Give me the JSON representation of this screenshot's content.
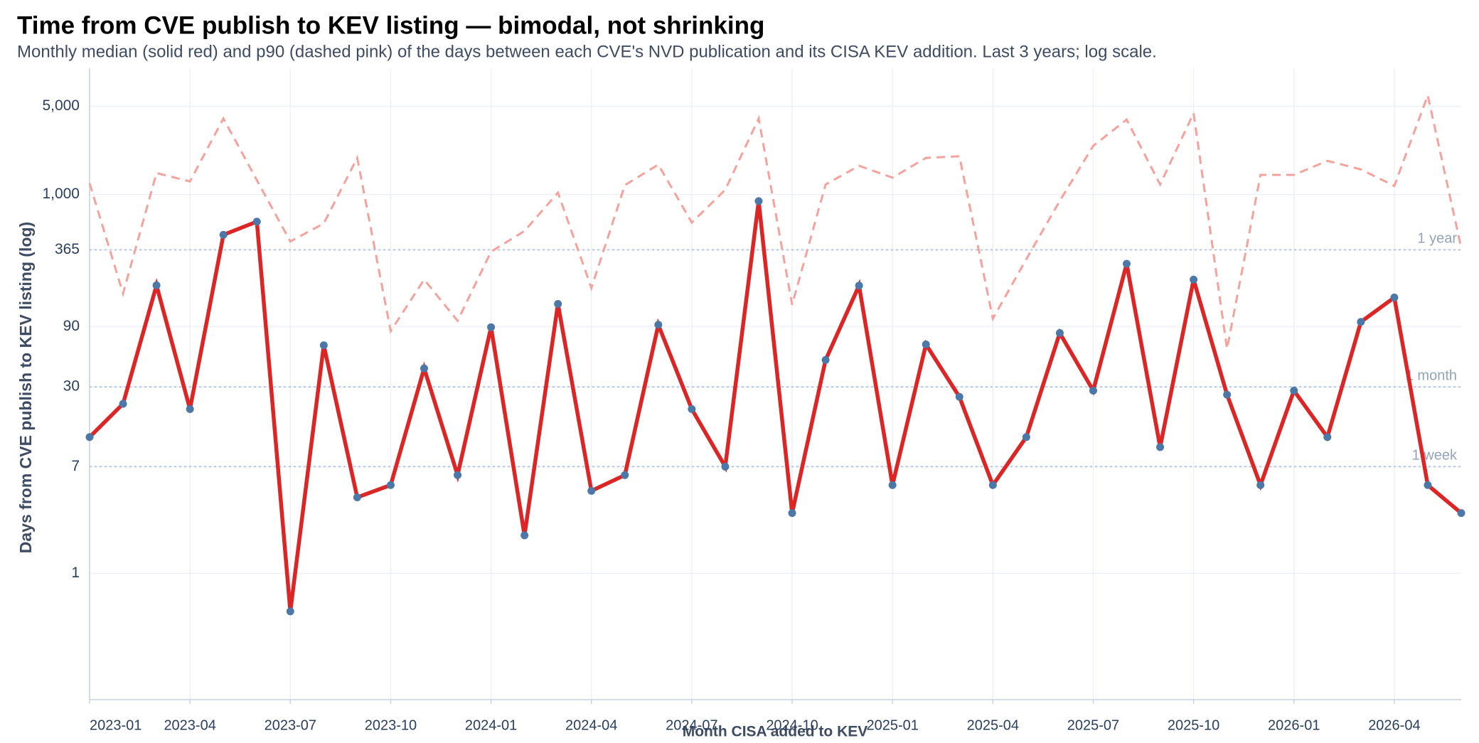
{
  "chart_data": {
    "type": "line",
    "title": "Time from CVE publish to KEV listing — bimodal, not shrinking",
    "subtitle": "Monthly median (solid red) and p90 (dashed pink) of the days between each CVE's NVD publication and its CISA KEV addition. Last 3 years; log scale.",
    "y_label": "Days from CVE publish to KEV listing (log)",
    "x_label": "Month CISA added to KEV",
    "log_y": true,
    "grid": true,
    "x": [
      "2023-01",
      "2023-02",
      "2023-03",
      "2023-04",
      "2023-05",
      "2023-06",
      "2023-07",
      "2023-08",
      "2023-09",
      "2023-10",
      "2023-11",
      "2023-12",
      "2024-01",
      "2024-02",
      "2024-03",
      "2024-04",
      "2024-05",
      "2024-06",
      "2024-07",
      "2024-08",
      "2024-09",
      "2024-10",
      "2024-11",
      "2024-12",
      "2025-01",
      "2025-02",
      "2025-03",
      "2025-04",
      "2025-05",
      "2025-06",
      "2025-07",
      "2025-08",
      "2025-09",
      "2025-10",
      "2025-11",
      "2025-12",
      "2026-01",
      "2026-02",
      "2026-03",
      "2026-04",
      "2026-05",
      "2026-06"
    ],
    "xlim": [
      "2023-01",
      "2026-06"
    ],
    "xticks": [
      "2023-01",
      "2023-04",
      "2023-07",
      "2023-10",
      "2024-01",
      "2024-04",
      "2024-07",
      "2024-10",
      "2025-01",
      "2025-04",
      "2025-07",
      "2025-10",
      "2026-01",
      "2026-04"
    ],
    "ylim": [
      0.1,
      10000
    ],
    "yticks": [
      1,
      7,
      30,
      90,
      365,
      {
        "value": 1000,
        "label": "1,000"
      },
      {
        "value": 5000,
        "label": "5,000"
      }
    ],
    "reference_lines": [
      {
        "value": 365,
        "label": "1 year"
      },
      {
        "value": 30,
        "label": "1 month"
      },
      {
        "value": 7,
        "label": "1 week"
      }
    ],
    "reference_color": "#b8c7df",
    "series": [
      {
        "color": "#f6a29c",
        "dashed": true,
        "markers": false,
        "values": [
          1230,
          164,
          1480,
          1270,
          4000,
          1300,
          425,
          590,
          1950,
          83,
          212,
          100,
          353,
          514,
          1035,
          182,
          1186,
          1725,
          600,
          1090,
          4000,
          134,
          1200,
          1690,
          1360,
          1950,
          2010,
          104,
          308,
          890,
          2430,
          3920,
          1200,
          4410,
          60,
          1430,
          1430,
          1850,
          1580,
          1170,
          6100,
          378
        ]
      },
      {
        "color": "#dc2626",
        "dashed": false,
        "markers": true,
        "marker_color": "#4c78a8",
        "values": [
          12,
          22,
          191,
          20,
          480,
          610,
          0.5,
          64,
          4,
          5,
          42,
          6,
          89,
          2,
          136,
          4.5,
          6,
          93,
          20,
          7,
          887,
          3,
          49,
          190,
          5,
          65,
          25,
          5,
          12,
          80,
          28,
          283,
          10,
          212,
          26,
          5,
          28,
          12,
          98,
          153,
          5,
          3
        ]
      }
    ]
  }
}
